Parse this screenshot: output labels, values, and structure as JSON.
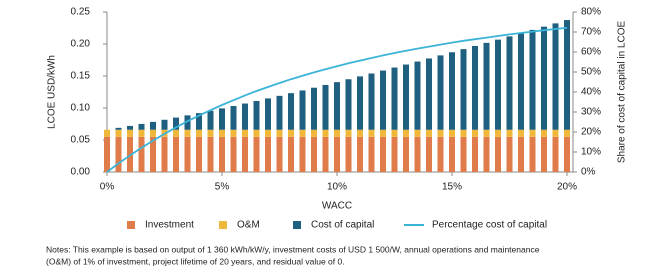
{
  "chart_data": {
    "type": "bar",
    "stacked": true,
    "x_label": "WACC",
    "y_label": "LCOE USD/kWh",
    "y2_label": "Share of cost of capital in LCOE",
    "x": [
      0,
      0.5,
      1,
      1.5,
      2,
      2.5,
      3,
      3.5,
      4,
      4.5,
      5,
      5.5,
      6,
      6.5,
      7,
      7.5,
      8,
      8.5,
      9,
      9.5,
      10,
      10.5,
      11,
      11.5,
      12,
      12.5,
      13,
      13.5,
      14,
      14.5,
      15,
      15.5,
      16,
      16.5,
      17,
      17.5,
      18,
      18.5,
      19,
      19.5,
      20
    ],
    "xlim": [
      0,
      20
    ],
    "xticks": [
      {
        "value": 0,
        "label": "0%"
      },
      {
        "value": 5,
        "label": "5%"
      },
      {
        "value": 10,
        "label": "10%"
      },
      {
        "value": 15,
        "label": "15%"
      },
      {
        "value": 20,
        "label": "20%"
      }
    ],
    "ylim": [
      0,
      0.25
    ],
    "yticks": [
      {
        "value": 0,
        "label": "0.00"
      },
      0.05,
      {
        "value": 0.1,
        "label": "0.10"
      },
      0.15,
      {
        "value": 0.2,
        "label": "0.20"
      },
      0.25
    ],
    "y2lim": [
      0,
      80
    ],
    "y2ticks": [
      {
        "value": 0,
        "label": "0%"
      },
      {
        "value": 10,
        "label": "10%"
      },
      {
        "value": 20,
        "label": "20%"
      },
      {
        "value": 30,
        "label": "30%"
      },
      {
        "value": 40,
        "label": "40%"
      },
      {
        "value": 50,
        "label": "50%"
      },
      {
        "value": 60,
        "label": "60%"
      },
      {
        "value": 70,
        "label": "70%"
      },
      {
        "value": 80,
        "label": "80%"
      }
    ],
    "series": [
      {
        "name": "Investment",
        "color": "#e07b4a",
        "values": [
          0.055,
          0.055,
          0.055,
          0.055,
          0.055,
          0.055,
          0.055,
          0.055,
          0.055,
          0.055,
          0.055,
          0.055,
          0.055,
          0.055,
          0.055,
          0.055,
          0.055,
          0.055,
          0.055,
          0.055,
          0.055,
          0.055,
          0.055,
          0.055,
          0.055,
          0.055,
          0.055,
          0.055,
          0.055,
          0.055,
          0.055,
          0.055,
          0.055,
          0.055,
          0.055,
          0.055,
          0.055,
          0.055,
          0.055,
          0.055,
          0.055
        ]
      },
      {
        "name": "O&M",
        "color": "#f0b83a",
        "values": [
          0.011,
          0.011,
          0.011,
          0.011,
          0.011,
          0.011,
          0.011,
          0.011,
          0.011,
          0.011,
          0.011,
          0.011,
          0.011,
          0.011,
          0.011,
          0.011,
          0.011,
          0.011,
          0.011,
          0.011,
          0.011,
          0.011,
          0.011,
          0.011,
          0.011,
          0.011,
          0.011,
          0.011,
          0.011,
          0.011,
          0.011,
          0.011,
          0.011,
          0.011,
          0.011,
          0.011,
          0.011,
          0.011,
          0.011,
          0.011,
          0.011
        ]
      },
      {
        "name": "Cost of capital",
        "color": "#1f5f7f",
        "values": [
          0,
          0.003,
          0.006,
          0.0091,
          0.0123,
          0.0156,
          0.019,
          0.0225,
          0.026,
          0.0296,
          0.0334,
          0.0371,
          0.041,
          0.045,
          0.049,
          0.053,
          0.0572,
          0.0614,
          0.0657,
          0.07,
          0.0744,
          0.0789,
          0.0834,
          0.0879,
          0.0925,
          0.0972,
          0.1019,
          0.1066,
          0.1114,
          0.1162,
          0.1211,
          0.126,
          0.1309,
          0.1358,
          0.1408,
          0.1459,
          0.1509,
          0.156,
          0.1611,
          0.1662,
          0.1714
        ]
      },
      {
        "name": "Percentage cost of capital",
        "color": "#3bb4d8",
        "type": "line",
        "axis": "y2",
        "values": [
          0,
          4.3,
          8.3,
          12.1,
          15.7,
          19.1,
          22.3,
          25.4,
          28.2,
          30.9,
          33.5,
          35.9,
          38.3,
          40.5,
          42.5,
          44.5,
          46.4,
          48.1,
          49.8,
          51.4,
          52.9,
          54.4,
          55.7,
          57.0,
          58.3,
          59.5,
          60.6,
          61.7,
          62.7,
          63.7,
          64.7,
          65.6,
          66.4,
          67.2,
          68.0,
          68.8,
          69.5,
          70.2,
          70.9,
          71.5,
          72.1
        ]
      }
    ]
  },
  "notes": [
    "Notes: This example is based on output of 1 360 kWh/kW/y, investment costs of USD 1 500/W, annual operations and maintenance",
    "(O&M) of 1% of investment, project lifetime of 20 years, and residual value of 0."
  ]
}
